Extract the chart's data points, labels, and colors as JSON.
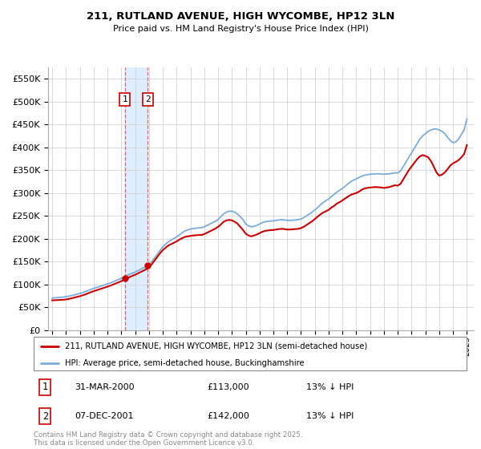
{
  "title": "211, RUTLAND AVENUE, HIGH WYCOMBE, HP12 3LN",
  "subtitle": "Price paid vs. HM Land Registry's House Price Index (HPI)",
  "ylim": [
    0,
    575000
  ],
  "yticks": [
    0,
    50000,
    100000,
    150000,
    200000,
    250000,
    300000,
    350000,
    400000,
    450000,
    500000,
    550000
  ],
  "legend_line1": "211, RUTLAND AVENUE, HIGH WYCOMBE, HP12 3LN (semi-detached house)",
  "legend_line2": "HPI: Average price, semi-detached house, Buckinghamshire",
  "annotation1_date": "31-MAR-2000",
  "annotation1_price": "£113,000",
  "annotation1_hpi": "13% ↓ HPI",
  "annotation2_date": "07-DEC-2001",
  "annotation2_price": "£142,000",
  "annotation2_hpi": "13% ↓ HPI",
  "red_color": "#cc0000",
  "blue_color": "#7aacdc",
  "shade_color": "#ddeeff",
  "footnote": "Contains HM Land Registry data © Crown copyright and database right 2025.\nThis data is licensed under the Open Government Licence v3.0.",
  "sale1_x": 2000.25,
  "sale1_y": 113000,
  "sale2_x": 2001.92,
  "sale2_y": 142000,
  "xmin": 1994.7,
  "xmax": 2025.5,
  "years_hpi": [
    1995.0,
    1995.2,
    1995.4,
    1995.6,
    1995.8,
    1996.0,
    1996.2,
    1996.4,
    1996.6,
    1996.8,
    1997.0,
    1997.2,
    1997.4,
    1997.6,
    1997.8,
    1998.0,
    1998.2,
    1998.4,
    1998.6,
    1998.8,
    1999.0,
    1999.2,
    1999.4,
    1999.6,
    1999.8,
    2000.0,
    2000.2,
    2000.4,
    2000.6,
    2000.8,
    2001.0,
    2001.2,
    2001.4,
    2001.6,
    2001.8,
    2002.0,
    2002.2,
    2002.4,
    2002.6,
    2002.8,
    2003.0,
    2003.2,
    2003.4,
    2003.6,
    2003.8,
    2004.0,
    2004.2,
    2004.4,
    2004.6,
    2004.8,
    2005.0,
    2005.2,
    2005.4,
    2005.6,
    2005.8,
    2006.0,
    2006.2,
    2006.4,
    2006.6,
    2006.8,
    2007.0,
    2007.2,
    2007.4,
    2007.6,
    2007.8,
    2008.0,
    2008.2,
    2008.4,
    2008.6,
    2008.8,
    2009.0,
    2009.2,
    2009.4,
    2009.6,
    2009.8,
    2010.0,
    2010.2,
    2010.4,
    2010.6,
    2010.8,
    2011.0,
    2011.2,
    2011.4,
    2011.6,
    2011.8,
    2012.0,
    2012.2,
    2012.4,
    2012.6,
    2012.8,
    2013.0,
    2013.2,
    2013.4,
    2013.6,
    2013.8,
    2014.0,
    2014.2,
    2014.4,
    2014.6,
    2014.8,
    2015.0,
    2015.2,
    2015.4,
    2015.6,
    2015.8,
    2016.0,
    2016.2,
    2016.4,
    2016.6,
    2016.8,
    2017.0,
    2017.2,
    2017.4,
    2017.6,
    2017.8,
    2018.0,
    2018.2,
    2018.4,
    2018.6,
    2018.8,
    2019.0,
    2019.2,
    2019.4,
    2019.6,
    2019.8,
    2020.0,
    2020.2,
    2020.4,
    2020.6,
    2020.8,
    2021.0,
    2021.2,
    2021.4,
    2021.6,
    2021.8,
    2022.0,
    2022.2,
    2022.4,
    2022.6,
    2022.8,
    2023.0,
    2023.2,
    2023.4,
    2023.6,
    2023.8,
    2024.0,
    2024.2,
    2024.4,
    2024.6,
    2024.8,
    2025.0
  ],
  "hpi_values": [
    70000,
    70500,
    71000,
    71500,
    72000,
    73000,
    74000,
    75500,
    77000,
    78500,
    80000,
    82000,
    84000,
    86500,
    89000,
    91000,
    93000,
    95000,
    97000,
    99000,
    101000,
    103000,
    105500,
    108000,
    110500,
    113000,
    116000,
    119000,
    122000,
    124500,
    127000,
    130000,
    133000,
    136000,
    139000,
    143000,
    150000,
    158000,
    166000,
    174000,
    182000,
    188000,
    193000,
    197000,
    200000,
    204000,
    208000,
    213000,
    217000,
    219000,
    221000,
    222000,
    223000,
    223500,
    224000,
    226000,
    229000,
    232000,
    235000,
    238000,
    242000,
    248000,
    254000,
    258000,
    260000,
    260000,
    258000,
    254000,
    248000,
    242000,
    232000,
    228000,
    226000,
    227000,
    229000,
    232000,
    235000,
    237000,
    238000,
    238500,
    239000,
    240000,
    241000,
    241500,
    241000,
    240000,
    240000,
    240500,
    241000,
    241500,
    243000,
    246000,
    250000,
    254000,
    258000,
    263000,
    268000,
    274000,
    279000,
    283000,
    287000,
    292000,
    297000,
    302000,
    306000,
    310000,
    315000,
    320000,
    325000,
    328000,
    331000,
    334000,
    337000,
    339000,
    340000,
    341000,
    341500,
    342000,
    342000,
    341500,
    341000,
    341500,
    342000,
    343000,
    344000,
    344000,
    348000,
    358000,
    368000,
    378000,
    388000,
    398000,
    408000,
    418000,
    425000,
    430000,
    435000,
    438000,
    440000,
    440000,
    438000,
    435000,
    430000,
    422000,
    415000,
    410000,
    412000,
    418000,
    428000,
    438000,
    462000
  ],
  "red_values": [
    65000,
    65300,
    65600,
    65900,
    66200,
    67000,
    68000,
    69500,
    71000,
    72500,
    74000,
    76000,
    78000,
    80500,
    83000,
    85000,
    87000,
    89000,
    91000,
    93000,
    95000,
    97000,
    99500,
    102000,
    104500,
    107000,
    110000,
    113000,
    116000,
    118500,
    121000,
    124000,
    127000,
    130000,
    133000,
    137000,
    144000,
    152000,
    160000,
    168000,
    175000,
    180000,
    185000,
    188000,
    191000,
    194000,
    198000,
    201000,
    204000,
    205000,
    206000,
    207000,
    207500,
    208000,
    208000,
    210000,
    213000,
    216000,
    219000,
    222000,
    226000,
    231000,
    237000,
    240000,
    241000,
    240000,
    237000,
    233000,
    226000,
    219000,
    211000,
    207000,
    205000,
    207000,
    209000,
    212000,
    215000,
    217000,
    218000,
    218500,
    219000,
    220000,
    221000,
    221500,
    221000,
    220000,
    220000,
    220500,
    221000,
    221500,
    223000,
    226000,
    230000,
    234000,
    238000,
    243000,
    248000,
    253000,
    257000,
    260000,
    263000,
    268000,
    272000,
    277000,
    280000,
    284000,
    288000,
    292000,
    296000,
    298000,
    300000,
    303000,
    307000,
    310000,
    311000,
    312000,
    312500,
    313000,
    312500,
    312000,
    311000,
    312000,
    313000,
    315000,
    317000,
    316000,
    320000,
    330000,
    340000,
    350000,
    358000,
    366000,
    374000,
    380000,
    383000,
    381000,
    378000,
    370000,
    358000,
    345000,
    338000,
    340000,
    345000,
    352000,
    360000,
    365000,
    368000,
    372000,
    378000,
    385000,
    405000
  ]
}
